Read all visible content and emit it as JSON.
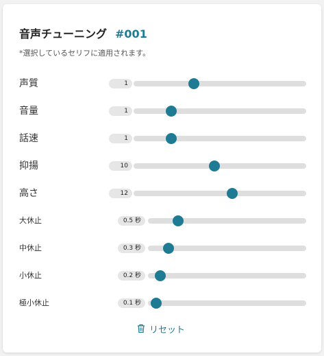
{
  "panel": {
    "title": "音声チューニング",
    "id_label": "#001",
    "note": "*選択しているセリフに適用されます。"
  },
  "params": [
    {
      "label": "声質",
      "value_text": "1",
      "level_fraction": 0.35
    },
    {
      "label": "音量",
      "value_text": "1",
      "level_fraction": 0.22
    },
    {
      "label": "話速",
      "value_text": "1",
      "level_fraction": 0.22
    },
    {
      "label": "抑揚",
      "value_text": "10",
      "level_fraction": 0.47
    },
    {
      "label": "高さ",
      "value_text": "12",
      "level_fraction": 0.57
    },
    {
      "label": "大休止",
      "value_text": "0.5 秒",
      "level_fraction": 0.19
    },
    {
      "label": "中休止",
      "value_text": "0.3 秒",
      "level_fraction": 0.13
    },
    {
      "label": "小休止",
      "value_text": "0.2 秒",
      "level_fraction": 0.08
    },
    {
      "label": "極小休止",
      "value_text": "0.1 秒",
      "level_fraction": 0.05
    }
  ],
  "reset": {
    "label": "リセット",
    "icon": "trash-icon"
  },
  "colors": {
    "accent": "#1f7a94",
    "track": "#dedede",
    "badge": "#e6e6e6"
  }
}
